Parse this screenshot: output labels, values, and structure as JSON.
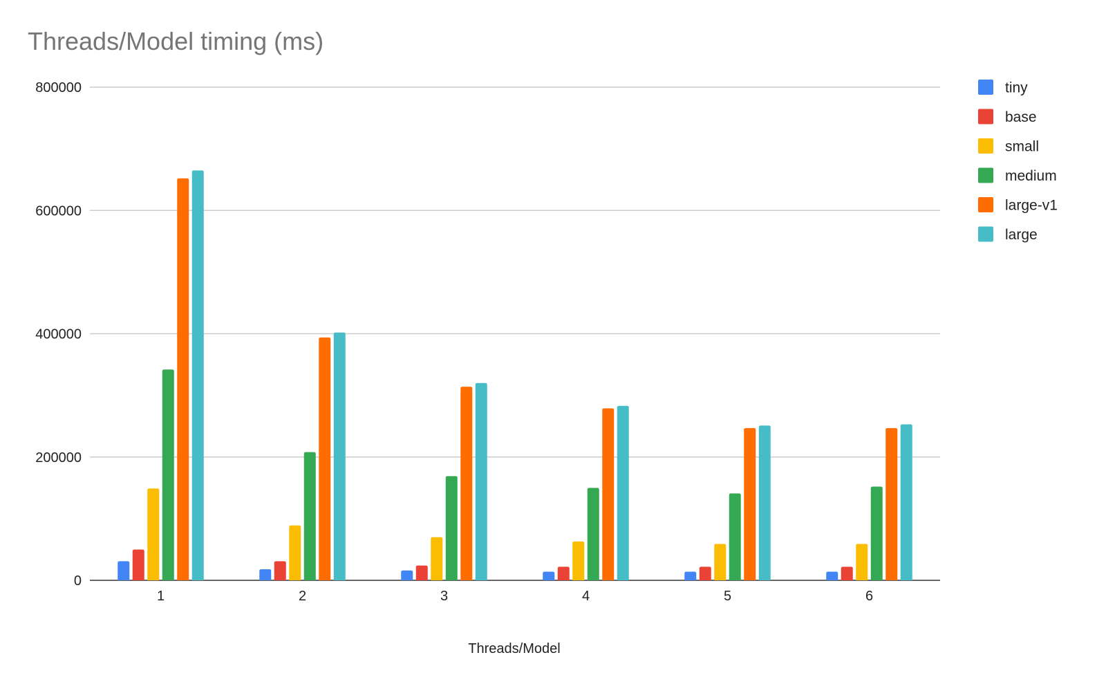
{
  "chart_data": {
    "type": "bar",
    "title": "Threads/Model timing (ms)",
    "xlabel": "Threads/Model",
    "ylabel": "",
    "categories": [
      "1",
      "2",
      "3",
      "4",
      "5",
      "6"
    ],
    "ylim": [
      0,
      800000
    ],
    "yticks": [
      0,
      200000,
      400000,
      600000,
      800000
    ],
    "grid": true,
    "legend_position": "right",
    "series": [
      {
        "name": "tiny",
        "color": "#4285f4",
        "values": [
          31000,
          18000,
          16000,
          14000,
          14000,
          14000
        ]
      },
      {
        "name": "base",
        "color": "#ea4335",
        "values": [
          50000,
          31000,
          24000,
          22000,
          22000,
          22000
        ]
      },
      {
        "name": "small",
        "color": "#fbbc04",
        "values": [
          149000,
          89000,
          70000,
          63000,
          59000,
          59000
        ]
      },
      {
        "name": "medium",
        "color": "#34a853",
        "values": [
          342000,
          208000,
          169000,
          150000,
          141000,
          152000
        ]
      },
      {
        "name": "large-v1",
        "color": "#ff6d01",
        "values": [
          652000,
          394000,
          314000,
          279000,
          247000,
          247000
        ]
      },
      {
        "name": "large",
        "color": "#46bdc6",
        "values": [
          665000,
          402000,
          320000,
          283000,
          251000,
          253000
        ]
      }
    ]
  }
}
